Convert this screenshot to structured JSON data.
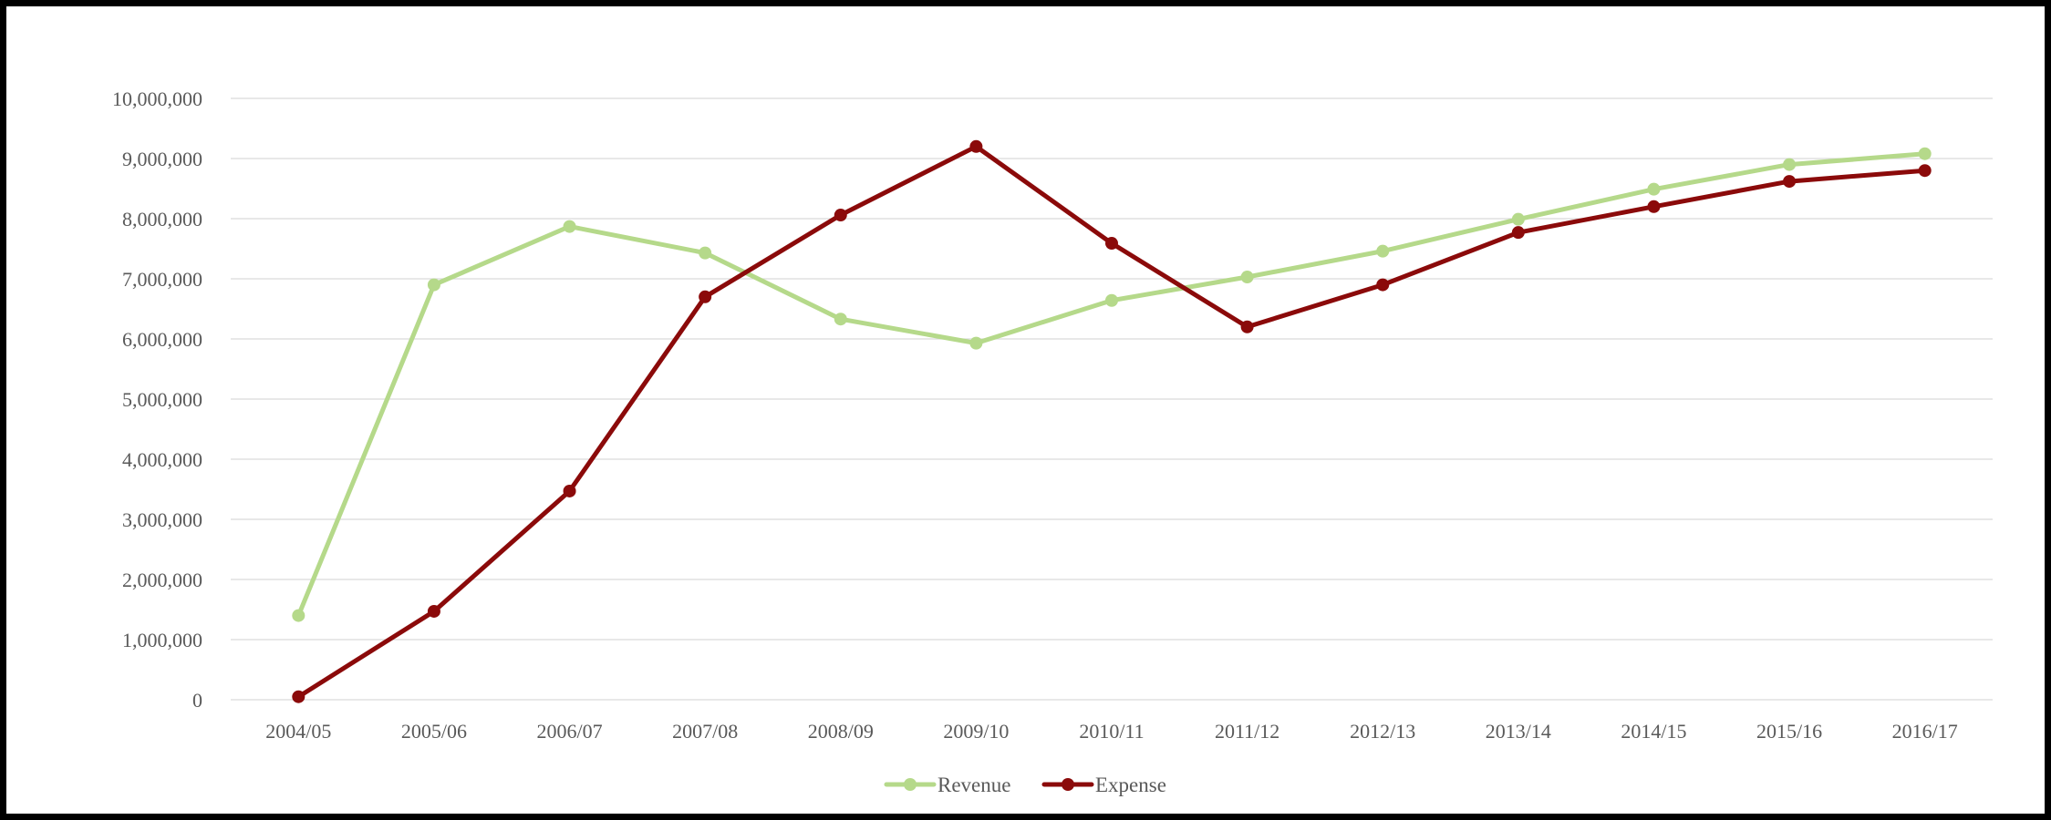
{
  "chart_data": {
    "type": "line",
    "title": "",
    "xlabel": "",
    "ylabel": "",
    "categories": [
      "2004/05",
      "2005/06",
      "2006/07",
      "2007/08",
      "2008/09",
      "2009/10",
      "2010/11",
      "2011/12",
      "2012/13",
      "2013/14",
      "2014/15",
      "2015/16",
      "2016/17"
    ],
    "ylim": [
      0,
      10000000
    ],
    "yticks": [
      0,
      1000000,
      2000000,
      3000000,
      4000000,
      5000000,
      6000000,
      7000000,
      8000000,
      9000000,
      10000000
    ],
    "ytick_labels": [
      "0",
      "1,000,000",
      "2,000,000",
      "3,000,000",
      "4,000,000",
      "5,000,000",
      "6,000,000",
      "7,000,000",
      "8,000,000",
      "9,000,000",
      "10,000,000"
    ],
    "grid": true,
    "legend_position": "bottom-center",
    "series": [
      {
        "name": "Revenue",
        "color": "#b5d98a",
        "values": [
          1400000,
          6900000,
          7870000,
          7430000,
          6330000,
          5930000,
          6640000,
          7030000,
          7460000,
          7990000,
          8490000,
          8900000,
          9080000
        ]
      },
      {
        "name": "Expense",
        "color": "#8b0a0a",
        "values": [
          50000,
          1470000,
          3470000,
          6700000,
          8060000,
          9200000,
          7590000,
          6200000,
          6900000,
          7770000,
          8200000,
          8620000,
          8800000
        ]
      }
    ]
  }
}
